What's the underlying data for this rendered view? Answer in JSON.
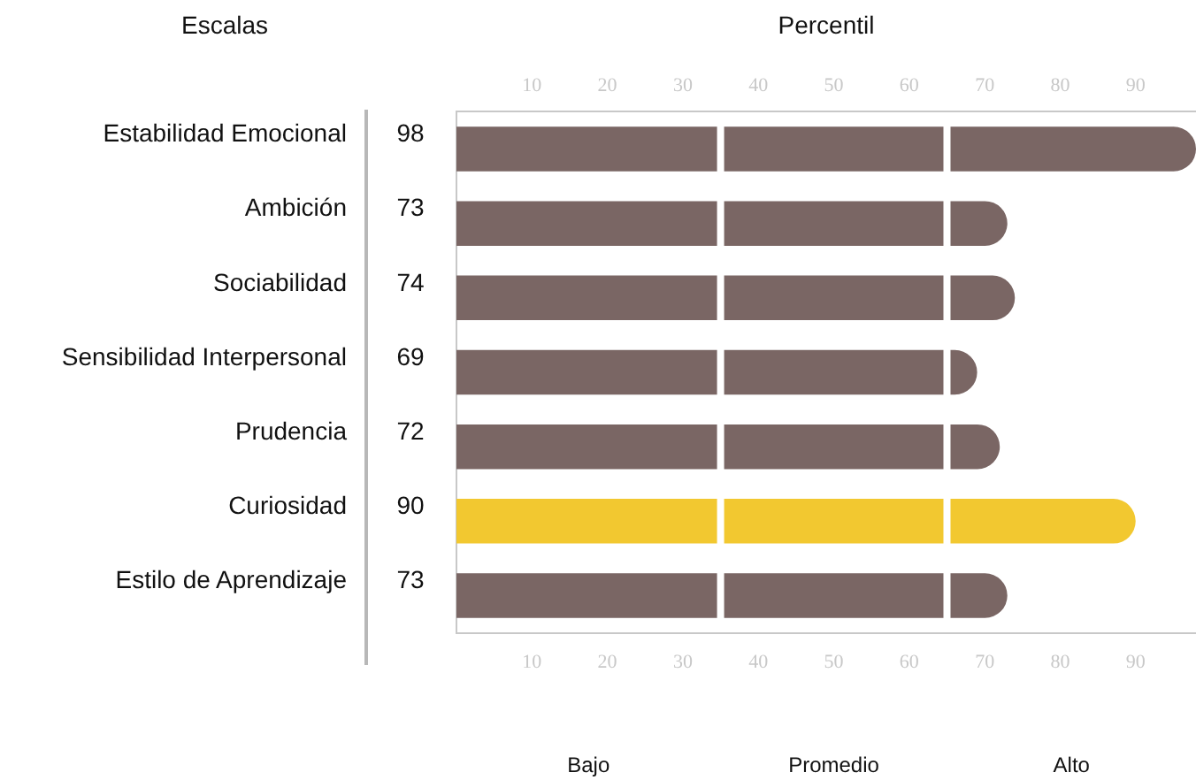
{
  "chart_data": {
    "type": "bar",
    "orientation": "horizontal",
    "title": "Percentil",
    "ylabel": "Escalas",
    "categories": [
      "Estabilidad Emocional",
      "Ambición",
      "Sociabilidad",
      "Sensibilidad Interpersonal",
      "Prudencia",
      "Curiosidad",
      "Estilo de Aprendizaje"
    ],
    "values": [
      98,
      73,
      74,
      69,
      72,
      90,
      73
    ],
    "colors": [
      "#7a6664",
      "#7a6664",
      "#7a6664",
      "#7a6664",
      "#7a6664",
      "#f2c830",
      "#7a6664"
    ],
    "data_labels": true,
    "xlim": [
      0,
      98
    ],
    "xticks": [
      10,
      20,
      30,
      40,
      50,
      60,
      70,
      80,
      90
    ],
    "x2lim": [
      0,
      98
    ],
    "x2ticks": [
      10,
      20,
      30,
      40,
      50,
      60,
      70,
      80,
      90
    ],
    "ref_lines": [
      {
        "axis": "x",
        "value": 35,
        "color": "#ffffff"
      },
      {
        "axis": "x",
        "value": 65,
        "color": "#ffffff"
      }
    ],
    "annotations": [
      "Bajo",
      "Promedio",
      "Alto"
    ],
    "grid": false,
    "legend": false
  }
}
